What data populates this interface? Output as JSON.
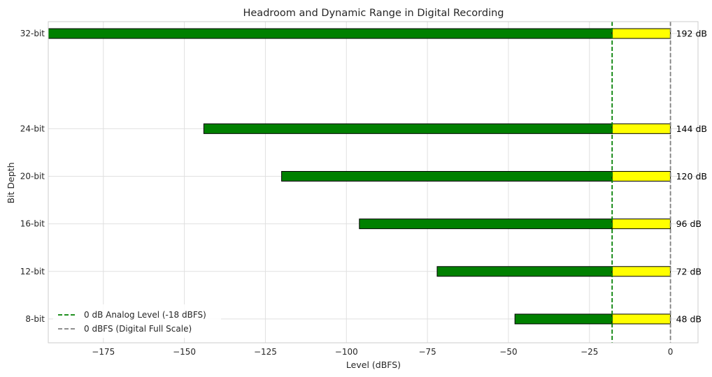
{
  "chart_data": {
    "type": "bar",
    "orientation": "horizontal",
    "title": "Headroom and Dynamic Range in Digital Recording",
    "xlabel": "Level (dBFS)",
    "ylabel": "Bit Depth",
    "xlim": [
      -192,
      8.5
    ],
    "ylim": [
      6,
      33
    ],
    "x_ticks": [
      -175,
      -150,
      -125,
      -100,
      -75,
      -50,
      -25,
      0
    ],
    "x_tick_labels": [
      "−175",
      "−150",
      "−125",
      "−100",
      "−75",
      "−50",
      "−25",
      "0"
    ],
    "categories": [
      "8-bit",
      "12-bit",
      "16-bit",
      "20-bit",
      "24-bit",
      "32-bit"
    ],
    "bit_depths": [
      8,
      12,
      16,
      20,
      24,
      32
    ],
    "dynamic_range_db": [
      48,
      72,
      96,
      120,
      144,
      192
    ],
    "data_labels": [
      "48 dB",
      "72 dB",
      "96 dB",
      "120 dB",
      "144 dB",
      "192 dB"
    ],
    "analog_reference_dbfs": -18,
    "full_scale_dbfs": 0,
    "grid": true,
    "legend_position": "lower-left",
    "legend": [
      {
        "label": "0 dB Analog Level (-18 dBFS)",
        "color": "#008000",
        "style": "dashed"
      },
      {
        "label": "0 dBFS (Digital Full Scale)",
        "color": "#808080",
        "style": "dashed"
      }
    ],
    "colors": {
      "dynamic_range": "#008000",
      "headroom": "#ffff00",
      "analog_line": "#008000",
      "full_scale_line": "#808080"
    }
  }
}
